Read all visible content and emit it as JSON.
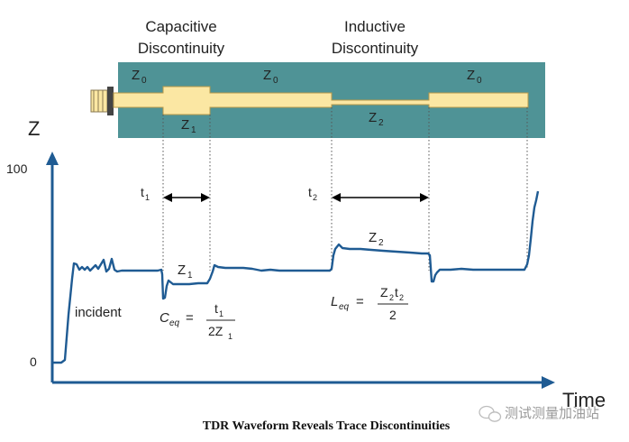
{
  "labels": {
    "capacitive_line1": "Capacitive",
    "capacitive_line2": "Discontinuity",
    "inductive_line1": "Inductive",
    "inductive_line2": "Discontinuity",
    "board_z0_left": "Z",
    "board_z0_mid": "Z",
    "board_z0_right": "Z",
    "z0_sub": "0",
    "board_z1": "Z",
    "z1_sub": "1",
    "board_z2": "Z",
    "z2_sub": "2"
  },
  "axis": {
    "y_label": "Z",
    "x_label": "Time",
    "tick_100": "100",
    "tick_0": "0"
  },
  "annotations": {
    "t1": "t",
    "t1_sub": "1",
    "t2": "t",
    "t2_sub": "2",
    "wave_z1": "Z",
    "wave_z1_sub": "1",
    "wave_z2": "Z",
    "wave_z2_sub": "2",
    "incident": "incident"
  },
  "formulas": {
    "ceq_lhs": "C",
    "ceq_sub": "eq",
    "ceq_eq": "=",
    "ceq_num": "t",
    "ceq_num_sub": "1",
    "ceq_den": "2Z",
    "ceq_den_sub": "1",
    "leq_lhs": "L",
    "leq_sub": "eq",
    "leq_eq": "=",
    "leq_num_a": "Z",
    "leq_num_a_sub": "2",
    "leq_num_b": "t",
    "leq_num_b_sub": "2",
    "leq_den": "2"
  },
  "caption": "TDR Waveform Reveals Trace Discontinuities",
  "watermark": "测试测量加油站",
  "colors": {
    "board": "#4f9396",
    "trace": "#fbe7a3",
    "trace_edge": "#b89a48",
    "waveform": "#1f5b93",
    "axis": "#1f5b93"
  }
}
